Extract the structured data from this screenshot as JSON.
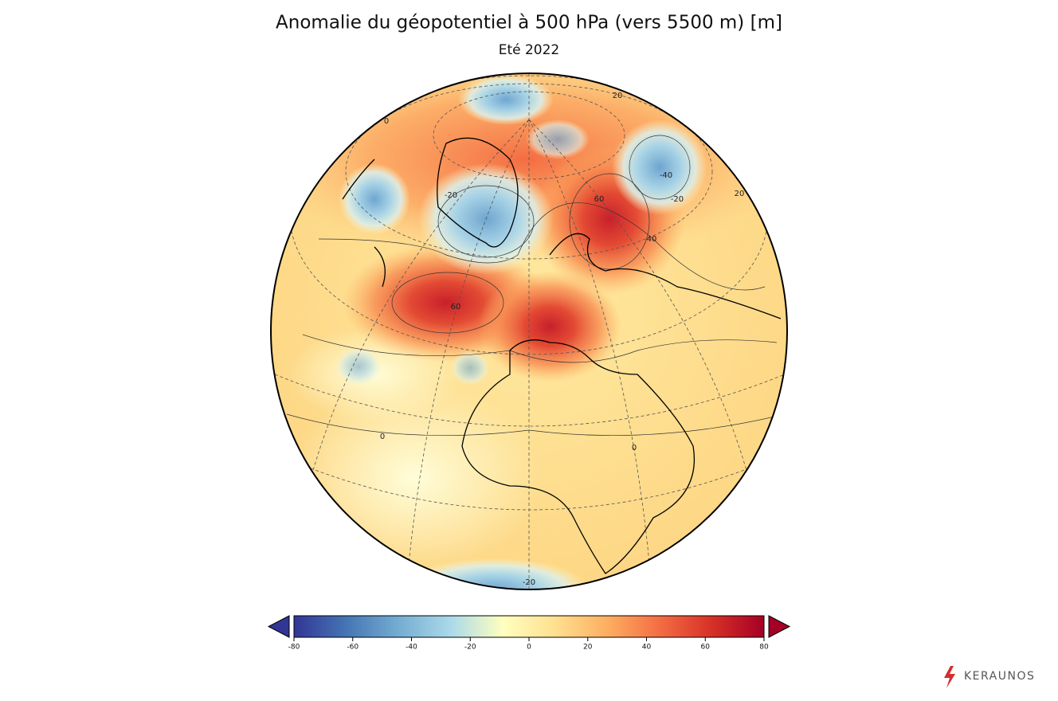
{
  "title": "Anomalie du géopotentiel à 500 hPa (vers 5500 m)  [m]",
  "subtitle": "Eté 2022",
  "map_labels": [
    "60",
    "60",
    "40",
    "-40",
    "-20",
    "-20",
    "0",
    "0",
    "-20",
    "20",
    "20",
    "0"
  ],
  "colorbar": {
    "range": [
      -80,
      80
    ],
    "ticks": [
      -80,
      -60,
      -40,
      -20,
      0,
      20,
      40,
      60,
      80
    ],
    "colors": [
      "#313695",
      "#4575b4",
      "#74add1",
      "#abd9e9",
      "#ffffbf",
      "#fee090",
      "#fdae61",
      "#f46d43",
      "#d73027",
      "#a50026"
    ]
  },
  "brand": "KERAUNOS"
}
